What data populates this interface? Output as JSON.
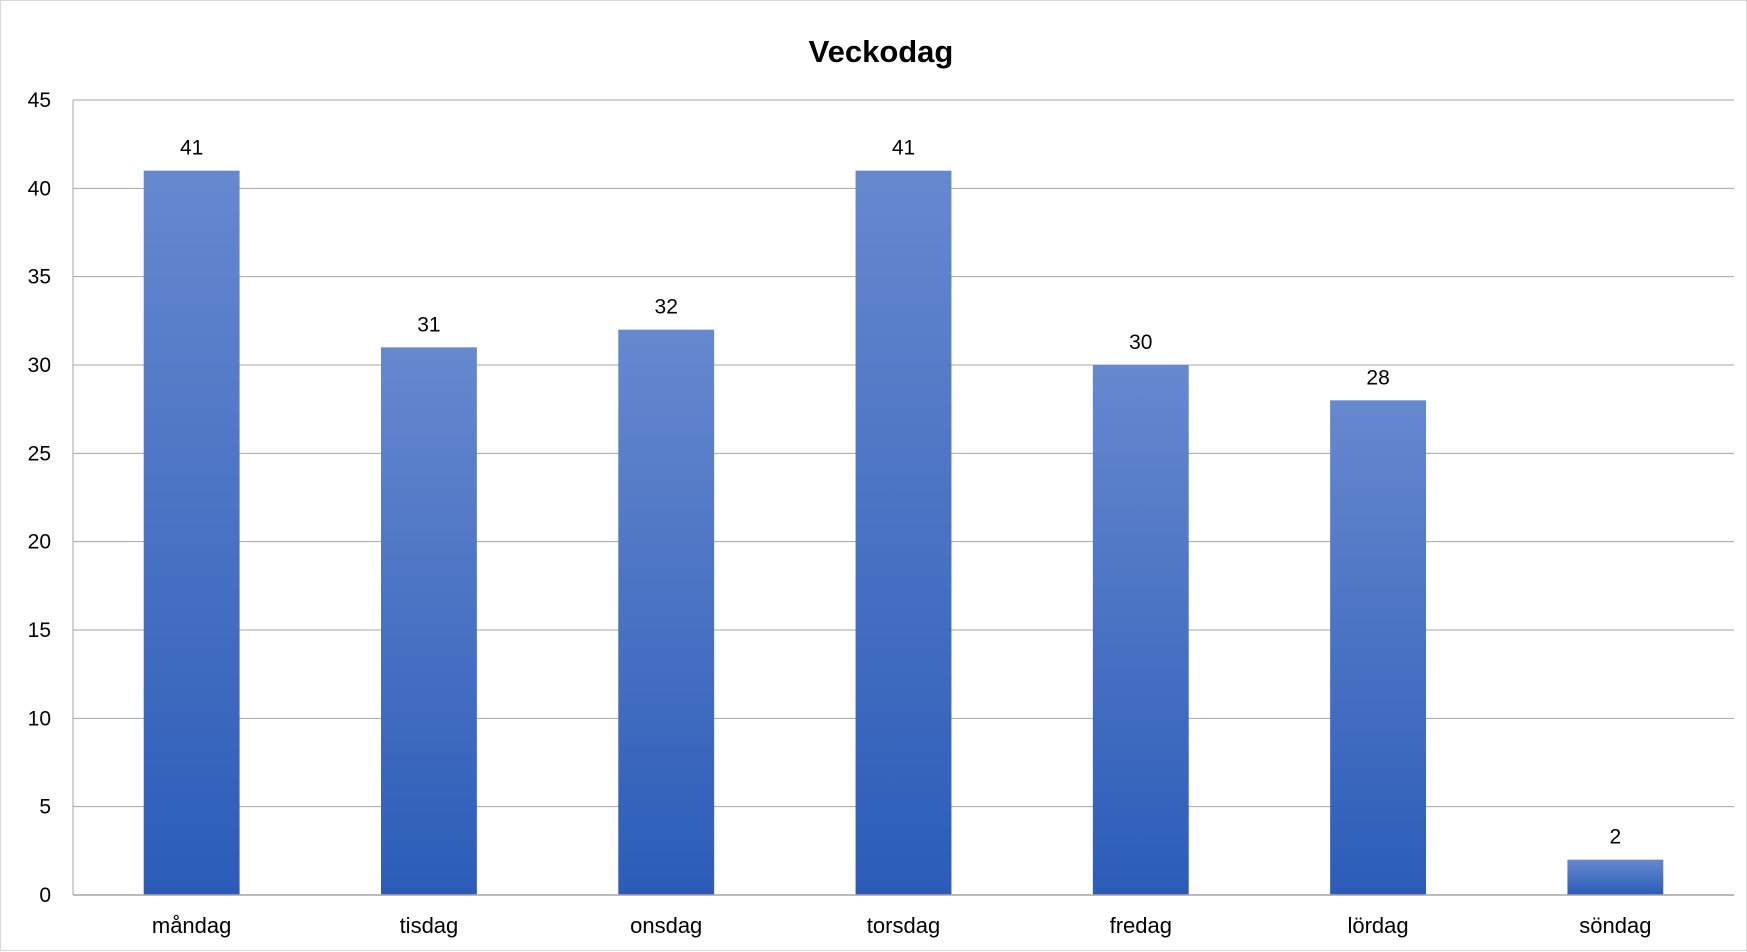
{
  "chart_data": {
    "type": "bar",
    "title": "Veckodag",
    "xlabel": "",
    "ylabel": "",
    "categories": [
      "måndag",
      "tisdag",
      "onsdag",
      "torsdag",
      "fredag",
      "lördag",
      "söndag"
    ],
    "values": [
      41,
      31,
      32,
      41,
      30,
      28,
      2
    ],
    "ylim": [
      0,
      45
    ],
    "yticks": [
      "0",
      "5",
      "10",
      "15",
      "20",
      "25",
      "30",
      "35",
      "40",
      "45"
    ],
    "grid": true,
    "legend": "none",
    "data_labels": true,
    "colors": {
      "bar_top": "#6688cf",
      "bar_bottom": "#2c5cb8",
      "gridline": "#a6a6a6",
      "axis": "#a6a6a6"
    }
  }
}
